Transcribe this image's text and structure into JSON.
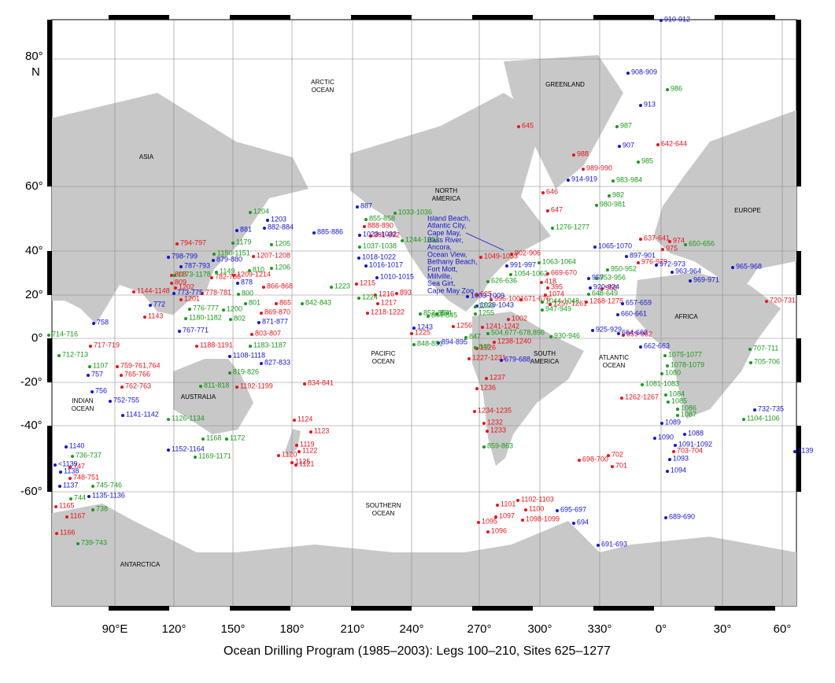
{
  "map": {
    "axes": {
      "lat_labels": [
        "80°",
        "N",
        "60°",
        "40°",
        "20°",
        "0°",
        "-20°",
        "-40°",
        "-60°"
      ],
      "lon_labels": [
        "90°E",
        "120°",
        "150°",
        "180°",
        "210°",
        "240°",
        "270°",
        "300°",
        "330°",
        "0°",
        "30°",
        "60°"
      ]
    },
    "regions": [
      "ASIA",
      "ARCTIC OCEAN",
      "GREENLAND",
      "NORTH AMERICA",
      "EUROPE",
      "AFRICA",
      "PACIFIC OCEAN",
      "INDIAN OCEAN",
      "AUSTRALIA",
      "SOUTH AMERICA",
      "ATLANTIC OCEAN",
      "SOUTHERN OCEAN",
      "ANTARCTICA"
    ],
    "callout": [
      "Island Beach,",
      "Atlantic City,",
      "Cape May,",
      "Bass River,",
      "Ancora,",
      "Ocean View,",
      "Bethany Beach,",
      "Fort Mott,",
      "Millville,",
      "Sea Girt,",
      "Cape May Zoo"
    ],
    "caption": "Ocean Drilling Program (1985–2003): Legs 100–210, Sites 625–1277",
    "site_groups": [
      {
        "color": "#e8141b",
        "labels": [
          "645",
          "988",
          "989-990",
          "642-644",
          "646",
          "647",
          "637-641",
          "975",
          "974",
          "976-979",
          "1049-1053",
          "902-906",
          "669-670",
          "395",
          "1074",
          "418",
          "1257-1261",
          "1268-1275",
          "958",
          "959-962",
          "720-731",
          "996-1001",
          "1002",
          "671-676",
          "625",
          "1241-1242",
          "1238-1240",
          "1226",
          "1227-1231",
          "1237",
          "1236",
          "1234-1235",
          "1232",
          "1233",
          "1256",
          "1225",
          "1216",
          "1215",
          "1217",
          "1218-1222",
          "893",
          "888-890",
          "891-892",
          "794-797",
          "1207-1208",
          "808",
          "809",
          "782-786",
          "778-781",
          "1202",
          "1201",
          "1144-1148",
          "1143",
          "1209-1214",
          "866-868",
          "865",
          "869-870",
          "803-807",
          "1188-1191",
          "1192-1199",
          "834-841",
          "717-719",
          "759-761,764",
          "765-766",
          "762-763",
          "1124",
          "1123",
          "1119",
          "1125",
          "1122",
          "1120",
          "1121",
          "747",
          "748-751",
          "1165",
          "1167",
          "1166",
          "698-700",
          "702",
          "701",
          "703-704",
          "1262-1267",
          "1101",
          "1102-1103",
          "1100",
          "1097",
          "1098-1099",
          "1095",
          "1096"
        ]
      },
      {
        "color": "#1414d4",
        "labels": [
          "910-912",
          "908-909",
          "913",
          "907",
          "914-919",
          "887",
          "881",
          "1203",
          "882-884",
          "885-886",
          "1023-1032",
          "1018-1022",
          "1016-1017",
          "1010-1015",
          "798-799",
          "787-793",
          "879-880",
          "878",
          "773-775",
          "772",
          "767-771",
          "758",
          "757",
          "756",
          "752-755",
          "1141-1142",
          "827-833",
          "871-877",
          "1108-1118",
          "1152-1164",
          "1140",
          "<1139",
          "1138",
          "1137",
          "1135-1136",
          "1065-1070",
          "897-901",
          "972-973",
          "963-964",
          "969-971",
          "965-968",
          "991-997",
          "1003-1009",
          "1039-1043",
          "1243",
          "894-895",
          "957",
          "920-924",
          "657-659",
          "660-661",
          "664-668",
          "662-663",
          "925-929",
          "679-688",
          "1089",
          "1090",
          "1088",
          "1091-1092",
          "1093",
          "1094",
          "732-735",
          "1139",
          "695-697",
          "694",
          "689-690",
          "691-693"
        ]
      },
      {
        "color": "#1a9a1a",
        "labels": [
          "986",
          "987",
          "985",
          "983-984",
          "982",
          "980-981",
          "1276-1277",
          "650-656",
          "1063-1064",
          "950-952",
          "953-956",
          "648-649",
          "1054-1062",
          "626-636",
          "1253",
          "1255",
          "1044-1048",
          "947-949",
          "504,677-678,896",
          "846",
          "847",
          "844-845",
          "852-854",
          "864",
          "848-851",
          "930-946",
          "1204",
          "1179",
          "1205",
          "1150-1151",
          "1149",
          "1173-1178",
          "810",
          "1206",
          "800",
          "801",
          "776-777",
          "1200",
          "1180-1182",
          "802",
          "1183-1187",
          "819-826",
          "811-818",
          "1223",
          "842-843",
          "855-858",
          "1033-1036",
          "1244-1252",
          "1037-1038",
          "1224",
          "714-716",
          "712-713",
          "1107",
          "1126-1134",
          "1168",
          "1172",
          "1169-1171",
          "736-737",
          "745-746",
          "744",
          "738",
          "739-743",
          "1075-1077",
          "1078-1079",
          "1080",
          "1081-1083",
          "1084",
          "1085",
          "1086",
          "1087",
          "707-711",
          "705-706",
          "1104-1106",
          "859-863"
        ]
      }
    ]
  }
}
